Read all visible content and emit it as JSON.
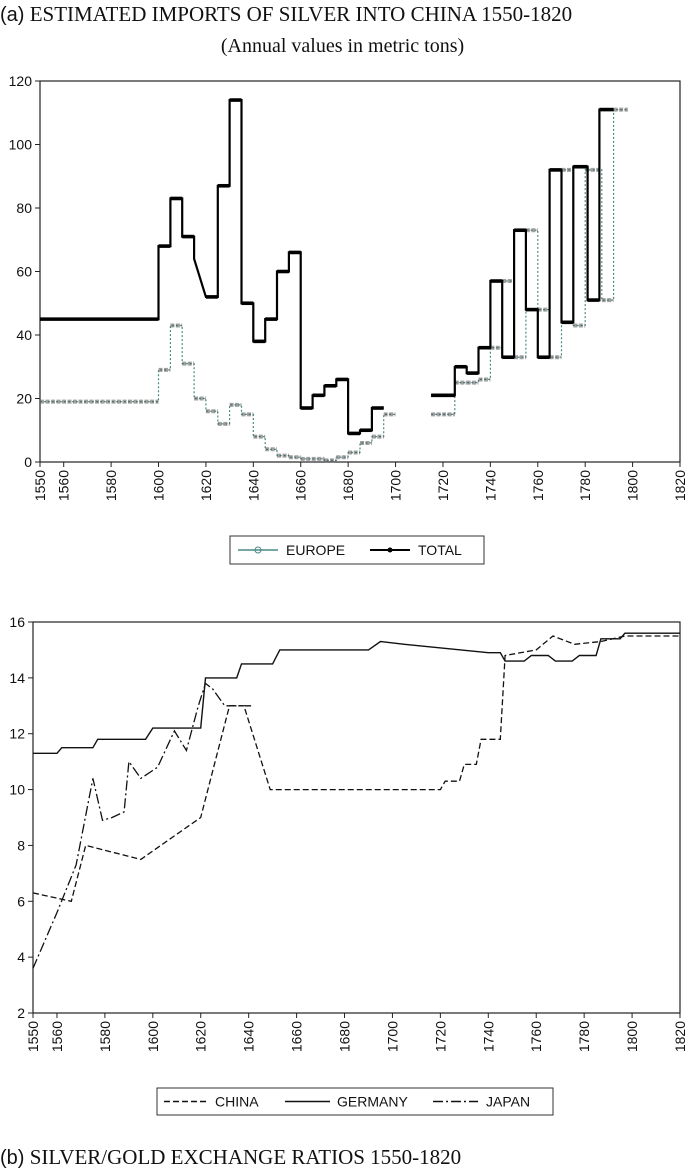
{
  "titles": {
    "a_prefix": "(a)",
    "a_main": "ESTIMATED IMPORTS OF SILVER INTO CHINA 1550-1820",
    "a_sub": "(Annual values in metric tons)",
    "b_prefix": "(b)",
    "b_main": "SILVER/GOLD EXCHANGE RATIOS 1550-1820"
  },
  "chart_data": [
    {
      "type": "line",
      "title": "ESTIMATED IMPORTS OF SILVER INTO CHINA 1550-1820",
      "subtitle": "(Annual values in metric tons)",
      "xlim": [
        1550,
        1820
      ],
      "ylim": [
        0,
        120
      ],
      "x_ticks": [
        1550,
        1560,
        1580,
        1600,
        1620,
        1640,
        1660,
        1680,
        1700,
        1720,
        1740,
        1760,
        1780,
        1800,
        1820
      ],
      "y_ticks": [
        0,
        20,
        40,
        60,
        80,
        100,
        120
      ],
      "legend": {
        "placement": "bottom",
        "entries": [
          "EUROPE",
          "TOTAL"
        ]
      },
      "series": [
        {
          "name": "EUROPE",
          "color": "#4a8a86",
          "style": "step-dotted",
          "segments": [
            [
              [
                1550,
                19
              ],
              [
                1600,
                19
              ],
              [
                1600,
                29
              ],
              [
                1605,
                29
              ],
              [
                1605,
                43
              ],
              [
                1610,
                43
              ],
              [
                1610,
                31
              ],
              [
                1615,
                31
              ],
              [
                1615,
                20
              ],
              [
                1620,
                20
              ],
              [
                1620,
                16
              ],
              [
                1625,
                16
              ],
              [
                1625,
                12
              ],
              [
                1630,
                12
              ],
              [
                1630,
                18
              ],
              [
                1635,
                18
              ],
              [
                1635,
                15
              ],
              [
                1640,
                15
              ],
              [
                1640,
                8
              ],
              [
                1645,
                8
              ],
              [
                1645,
                4
              ],
              [
                1650,
                4
              ],
              [
                1650,
                2
              ],
              [
                1655,
                2
              ],
              [
                1655,
                1.5
              ],
              [
                1660,
                1.5
              ],
              [
                1660,
                1
              ],
              [
                1670,
                1
              ],
              [
                1670,
                0.5
              ],
              [
                1675,
                0.5
              ],
              [
                1675,
                1.5
              ],
              [
                1680,
                1.5
              ],
              [
                1680,
                3
              ],
              [
                1685,
                3
              ],
              [
                1685,
                6
              ],
              [
                1690,
                6
              ],
              [
                1690,
                8
              ],
              [
                1695,
                8
              ],
              [
                1695,
                15
              ],
              [
                1700,
                15
              ]
            ],
            [
              [
                1715,
                15
              ],
              [
                1725,
                15
              ],
              [
                1725,
                25
              ],
              [
                1730,
                25
              ],
              [
                1730,
                25
              ],
              [
                1735,
                25
              ],
              [
                1735,
                26
              ],
              [
                1740,
                26
              ],
              [
                1740,
                36
              ],
              [
                1745,
                36
              ],
              [
                1745,
                57
              ],
              [
                1750,
                57
              ],
              [
                1750,
                33
              ],
              [
                1755,
                33
              ],
              [
                1755,
                73
              ],
              [
                1760,
                73
              ],
              [
                1760,
                48
              ],
              [
                1765,
                48
              ],
              [
                1765,
                33
              ],
              [
                1770,
                33
              ],
              [
                1770,
                92
              ],
              [
                1775,
                92
              ],
              [
                1775,
                43
              ],
              [
                1780,
                43
              ],
              [
                1780,
                92
              ],
              [
                1787,
                92
              ],
              [
                1787,
                51
              ],
              [
                1792,
                51
              ],
              [
                1792,
                111
              ],
              [
                1798,
                111
              ]
            ]
          ]
        },
        {
          "name": "TOTAL",
          "color": "#000000",
          "style": "step-solid",
          "segments": [
            [
              [
                1550,
                45
              ],
              [
                1600,
                45
              ],
              [
                1600,
                68
              ],
              [
                1605,
                68
              ],
              [
                1605,
                83
              ],
              [
                1610,
                83
              ],
              [
                1610,
                71
              ],
              [
                1615,
                71
              ],
              [
                1615,
                64
              ],
              [
                1620,
                52
              ],
              [
                1625,
                52
              ],
              [
                1625,
                87
              ],
              [
                1630,
                87
              ],
              [
                1630,
                114
              ],
              [
                1635,
                114
              ],
              [
                1635,
                50
              ],
              [
                1640,
                50
              ],
              [
                1640,
                38
              ],
              [
                1645,
                38
              ],
              [
                1645,
                45
              ],
              [
                1650,
                45
              ],
              [
                1650,
                60
              ],
              [
                1655,
                60
              ],
              [
                1655,
                66
              ],
              [
                1660,
                66
              ],
              [
                1660,
                17
              ],
              [
                1665,
                17
              ],
              [
                1665,
                21
              ],
              [
                1670,
                21
              ],
              [
                1670,
                24
              ],
              [
                1675,
                24
              ],
              [
                1675,
                26
              ],
              [
                1680,
                26
              ],
              [
                1680,
                9
              ],
              [
                1685,
                9
              ],
              [
                1685,
                10
              ],
              [
                1690,
                10
              ],
              [
                1690,
                17
              ],
              [
                1695,
                17
              ]
            ],
            [
              [
                1715,
                21
              ],
              [
                1725,
                21
              ],
              [
                1725,
                30
              ],
              [
                1730,
                30
              ],
              [
                1730,
                28
              ],
              [
                1735,
                28
              ],
              [
                1735,
                36
              ],
              [
                1740,
                36
              ],
              [
                1740,
                57
              ],
              [
                1745,
                57
              ],
              [
                1745,
                33
              ],
              [
                1750,
                33
              ],
              [
                1750,
                73
              ],
              [
                1755,
                73
              ],
              [
                1755,
                48
              ],
              [
                1760,
                48
              ],
              [
                1760,
                33
              ],
              [
                1765,
                33
              ],
              [
                1765,
                92
              ],
              [
                1770,
                92
              ],
              [
                1770,
                44
              ],
              [
                1775,
                44
              ],
              [
                1775,
                93
              ],
              [
                1781,
                93
              ],
              [
                1781,
                51
              ],
              [
                1786,
                51
              ],
              [
                1786,
                111
              ],
              [
                1792,
                111
              ]
            ]
          ]
        }
      ]
    },
    {
      "type": "line",
      "title": "SILVER/GOLD EXCHANGE RATIOS 1550-1820",
      "xlim": [
        1550,
        1820
      ],
      "ylim": [
        2,
        16
      ],
      "x_ticks": [
        1550,
        1560,
        1580,
        1600,
        1620,
        1640,
        1660,
        1680,
        1700,
        1720,
        1740,
        1760,
        1780,
        1800,
        1820
      ],
      "y_ticks": [
        2,
        4,
        6,
        8,
        10,
        12,
        14,
        16
      ],
      "legend": {
        "placement": "bottom",
        "entries": [
          "CHINA",
          "GERMANY",
          "JAPAN"
        ]
      },
      "series": [
        {
          "name": "CHINA",
          "color": "#111111",
          "style": "dashed",
          "points": [
            [
              1550,
              6.3
            ],
            [
              1566,
              6.0
            ],
            [
              1572,
              8.0
            ],
            [
              1595,
              7.5
            ],
            [
              1620,
              9.0
            ],
            [
              1632,
              13.0
            ],
            [
              1638,
              13.0
            ],
            [
              1649,
              10.0
            ],
            [
              1720,
              10.0
            ],
            [
              1722,
              10.3
            ],
            [
              1728,
              10.3
            ],
            [
              1730,
              10.9
            ],
            [
              1735,
              10.9
            ],
            [
              1737,
              11.8
            ],
            [
              1745,
              11.8
            ],
            [
              1747,
              14.8
            ],
            [
              1760,
              15.0
            ],
            [
              1767,
              15.5
            ],
            [
              1776,
              15.2
            ],
            [
              1787,
              15.3
            ],
            [
              1797,
              15.5
            ],
            [
              1820,
              15.5
            ]
          ]
        },
        {
          "name": "GERMANY",
          "color": "#111111",
          "style": "solid",
          "points": [
            [
              1550,
              11.3
            ],
            [
              1560,
              11.3
            ],
            [
              1562,
              11.5
            ],
            [
              1575,
              11.5
            ],
            [
              1577,
              11.8
            ],
            [
              1597,
              11.8
            ],
            [
              1600,
              12.2
            ],
            [
              1620,
              12.2
            ],
            [
              1622,
              14.0
            ],
            [
              1635,
              14.0
            ],
            [
              1637,
              14.5
            ],
            [
              1650,
              14.5
            ],
            [
              1653,
              15.0
            ],
            [
              1690,
              15.0
            ],
            [
              1695,
              15.3
            ],
            [
              1705,
              15.2
            ],
            [
              1740,
              14.9
            ],
            [
              1745,
              14.9
            ],
            [
              1747,
              14.6
            ],
            [
              1755,
              14.6
            ],
            [
              1758,
              14.8
            ],
            [
              1765,
              14.8
            ],
            [
              1768,
              14.6
            ],
            [
              1775,
              14.6
            ],
            [
              1778,
              14.8
            ],
            [
              1785,
              14.8
            ],
            [
              1787,
              15.4
            ],
            [
              1795,
              15.4
            ],
            [
              1797,
              15.6
            ],
            [
              1820,
              15.6
            ]
          ]
        },
        {
          "name": "JAPAN",
          "color": "#111111",
          "style": "long-dash",
          "points": [
            [
              1550,
              3.6
            ],
            [
              1560,
              5.6
            ],
            [
              1568,
              7.3
            ],
            [
              1575,
              10.4
            ],
            [
              1579,
              8.9
            ],
            [
              1583,
              9.0
            ],
            [
              1588,
              9.2
            ],
            [
              1590,
              11.0
            ],
            [
              1595,
              10.4
            ],
            [
              1602,
              10.8
            ],
            [
              1609,
              12.1
            ],
            [
              1614,
              11.4
            ],
            [
              1619,
              13.0
            ],
            [
              1622,
              13.8
            ],
            [
              1625,
              13.6
            ],
            [
              1630,
              13.0
            ],
            [
              1641,
              13.0
            ]
          ]
        }
      ]
    }
  ]
}
